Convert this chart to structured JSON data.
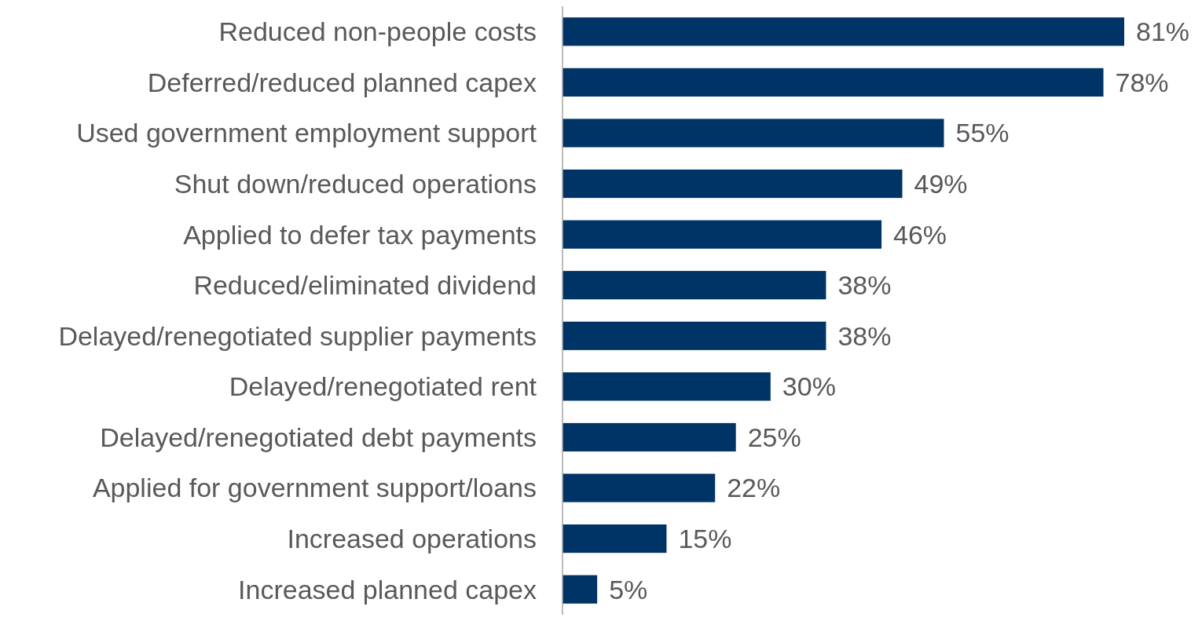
{
  "chart_data": {
    "type": "bar",
    "orientation": "horizontal",
    "categories": [
      "Reduced non-people costs",
      "Deferred/reduced planned capex",
      "Used government employment support",
      "Shut down/reduced operations",
      "Applied to defer tax payments",
      "Reduced/eliminated dividend",
      "Delayed/renegotiated supplier payments",
      "Delayed/renegotiated rent",
      "Delayed/renegotiated debt payments",
      "Applied for government support/loans",
      "Increased operations",
      "Increased planned capex"
    ],
    "values": [
      81,
      78,
      55,
      49,
      46,
      38,
      38,
      30,
      25,
      22,
      15,
      5
    ],
    "value_labels": [
      "81%",
      "78%",
      "55%",
      "49%",
      "46%",
      "38%",
      "38%",
      "30%",
      "25%",
      "22%",
      "15%",
      "5%"
    ],
    "color": "#003366"
  }
}
